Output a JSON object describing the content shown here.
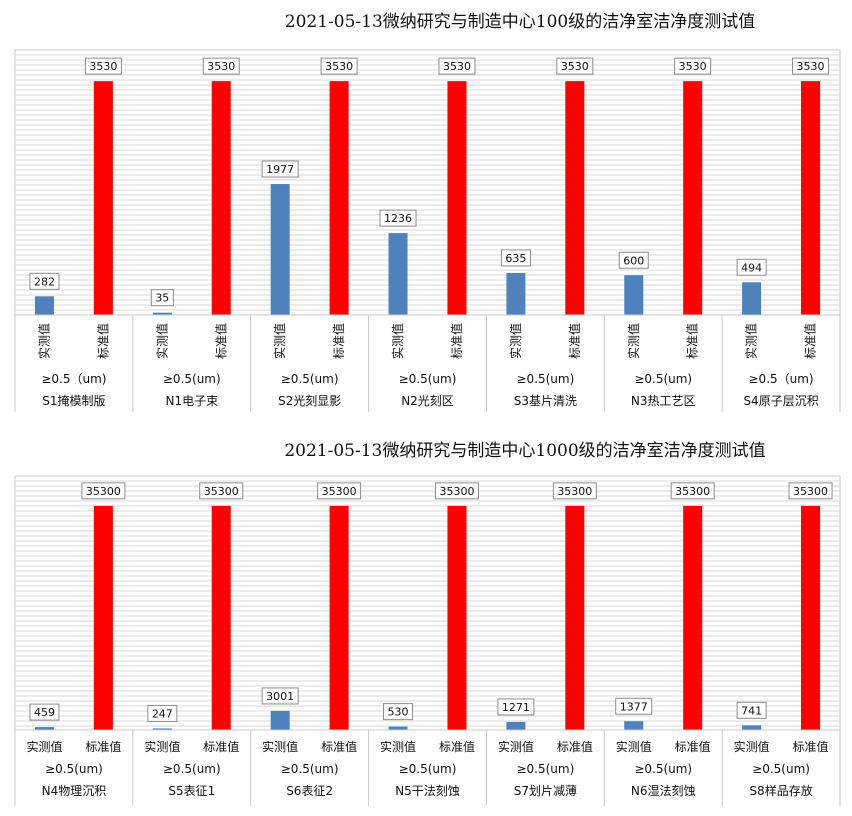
{
  "chart_data": [
    {
      "type": "bar",
      "title": "2021-05-13微纳研究与制造中心100级的洁净室洁净度测试值",
      "groups": [
        {
          "name": "S1掩模制版",
          "particle": "≥0.5（um)",
          "measured": 282,
          "standard": 3530
        },
        {
          "name": "N1电子束",
          "particle": "≥0.5(um)",
          "measured": 35,
          "standard": 3530
        },
        {
          "name": "S2光刻显影",
          "particle": "≥0.5(um)",
          "measured": 1977,
          "standard": 3530
        },
        {
          "name": "N2光刻区",
          "particle": "≥0.5(um)",
          "measured": 1236,
          "standard": 3530
        },
        {
          "name": "S3基片清洗",
          "particle": "≥0.5(um)",
          "measured": 635,
          "standard": 3530
        },
        {
          "name": "N3热工艺区",
          "particle": "≥0.5(um)",
          "measured": 600,
          "standard": 3530
        },
        {
          "name": "S4原子层沉积",
          "particle": "≥0.5（um)",
          "measured": 494,
          "standard": 3530
        }
      ],
      "series_labels": {
        "measured": "实测值",
        "standard": "标准值"
      },
      "ylim": [
        0,
        4000
      ],
      "grid": true,
      "colors": {
        "measured": "#4f81bd",
        "standard": "#ff0000"
      },
      "vertical_category_labels": true
    },
    {
      "type": "bar",
      "title": "2021-05-13微纳研究与制造中心1000级的洁净室洁净度测试值",
      "groups": [
        {
          "name": "N4物理沉积",
          "particle": "≥0.5(um)",
          "measured": 459,
          "standard": 35300
        },
        {
          "name": "S5表征1",
          "particle": "≥0.5(um)",
          "measured": 247,
          "standard": 35300
        },
        {
          "name": "S6表征2",
          "particle": "≥0.5(um)",
          "measured": 3001,
          "standard": 35300
        },
        {
          "name": "N5干法刻蚀",
          "particle": "≥0.5(um)",
          "measured": 530,
          "standard": 35300
        },
        {
          "name": "S7划片减薄",
          "particle": "≥0.5(um)",
          "measured": 1271,
          "standard": 35300
        },
        {
          "name": "N6湿法刻蚀",
          "particle": "≥0.5(um)",
          "measured": 1377,
          "standard": 35300
        },
        {
          "name": "S8样品存放",
          "particle": "≥0.5(um)",
          "measured": 741,
          "standard": 35300
        }
      ],
      "series_labels": {
        "measured": "实测值",
        "standard": "标准值"
      },
      "ylim": [
        0,
        40000
      ],
      "grid": true,
      "colors": {
        "measured": "#4f81bd",
        "standard": "#ff0000"
      },
      "vertical_category_labels": false
    }
  ]
}
